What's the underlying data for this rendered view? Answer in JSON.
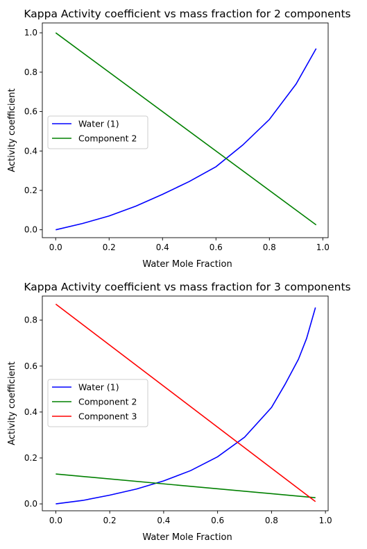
{
  "chart_data": [
    {
      "type": "line",
      "title": "Kappa Activity coefficient vs mass fraction for 2 components",
      "xlabel": "Water Mole Fraction",
      "ylabel": "Activity coefficient",
      "xlim": [
        -0.05,
        1.02
      ],
      "ylim": [
        -0.04,
        1.05
      ],
      "xticks": [
        0.0,
        0.2,
        0.4,
        0.6,
        0.8,
        1.0
      ],
      "xtick_labels": [
        "0.0",
        "0.2",
        "0.4",
        "0.6",
        "0.8",
        "1.0"
      ],
      "yticks": [
        0.0,
        0.2,
        0.4,
        0.6,
        0.8,
        1.0
      ],
      "ytick_labels": [
        "0.0",
        "0.2",
        "0.4",
        "0.6",
        "0.8",
        "1.0"
      ],
      "grid": false,
      "legend_position": "center-left",
      "series": [
        {
          "name": "Water (1)",
          "color": "#0000ff",
          "x": [
            0.0,
            0.1,
            0.2,
            0.3,
            0.4,
            0.5,
            0.6,
            0.7,
            0.8,
            0.9,
            0.975
          ],
          "y": [
            0.0,
            0.032,
            0.07,
            0.12,
            0.18,
            0.245,
            0.32,
            0.43,
            0.56,
            0.74,
            0.92
          ]
        },
        {
          "name": "Component 2",
          "color": "#008000",
          "x": [
            0.0,
            0.975
          ],
          "y": [
            1.0,
            0.025
          ]
        }
      ]
    },
    {
      "type": "line",
      "title": "Kappa Activity coefficient vs mass fraction for 3 components",
      "xlabel": "Water Mole Fraction",
      "ylabel": "Activity coefficient",
      "xlim": [
        -0.05,
        1.01
      ],
      "ylim": [
        -0.03,
        0.905
      ],
      "xticks": [
        0.0,
        0.2,
        0.4,
        0.6,
        0.8,
        1.0
      ],
      "xtick_labels": [
        "0.0",
        "0.2",
        "0.4",
        "0.6",
        "0.8",
        "1.0"
      ],
      "yticks": [
        0.0,
        0.2,
        0.4,
        0.6,
        0.8
      ],
      "ytick_labels": [
        "0.0",
        "0.2",
        "0.4",
        "0.6",
        "0.8"
      ],
      "grid": false,
      "legend_position": "center-left",
      "series": [
        {
          "name": "Water (1)",
          "color": "#0000ff",
          "x": [
            0.0,
            0.1,
            0.2,
            0.3,
            0.4,
            0.5,
            0.6,
            0.7,
            0.8,
            0.85,
            0.9,
            0.93,
            0.963
          ],
          "y": [
            0.0,
            0.015,
            0.038,
            0.065,
            0.1,
            0.145,
            0.205,
            0.29,
            0.42,
            0.52,
            0.63,
            0.72,
            0.855
          ]
        },
        {
          "name": "Component 2",
          "color": "#008000",
          "x": [
            0.0,
            0.963
          ],
          "y": [
            0.13,
            0.027
          ]
        },
        {
          "name": "Component 3",
          "color": "#ff0000",
          "x": [
            0.0,
            0.963
          ],
          "y": [
            0.87,
            0.01
          ]
        }
      ]
    }
  ]
}
